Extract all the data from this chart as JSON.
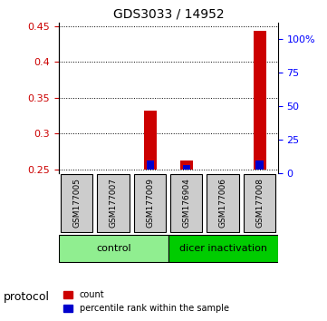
{
  "title": "GDS3033 / 14952",
  "samples": [
    "GSM177005",
    "GSM177007",
    "GSM177009",
    "GSM176904",
    "GSM177006",
    "GSM177008"
  ],
  "red_values": [
    0.25,
    0.25,
    0.332,
    0.262,
    0.25,
    0.443
  ],
  "blue_values": [
    0.0,
    0.0,
    0.012,
    0.006,
    0.0,
    0.012
  ],
  "ylim_left": [
    0.245,
    0.455
  ],
  "ylim_right": [
    0,
    112
  ],
  "yticks_left": [
    0.25,
    0.3,
    0.35,
    0.4,
    0.45
  ],
  "ytick_labels_left": [
    "0.25",
    "0.3",
    "0.35",
    "0.4",
    "0.45"
  ],
  "yticks_right": [
    0,
    25,
    50,
    75,
    100
  ],
  "ytick_labels_right": [
    "0",
    "25",
    "50",
    "75",
    "100%"
  ],
  "groups": [
    {
      "label": "control",
      "indices": [
        0,
        1,
        2
      ],
      "color": "#90ee90"
    },
    {
      "label": "dicer inactivation",
      "indices": [
        3,
        4,
        5
      ],
      "color": "#00cc00"
    }
  ],
  "bar_width": 0.35,
  "red_color": "#cc0000",
  "blue_color": "#0000cc",
  "sample_box_color": "#cccccc",
  "protocol_label": "protocol",
  "legend_items": [
    {
      "color": "#cc0000",
      "label": "count"
    },
    {
      "color": "#0000cc",
      "label": "percentile rank within the sample"
    }
  ],
  "baseline": 0.25,
  "blue_scale": 0.002
}
